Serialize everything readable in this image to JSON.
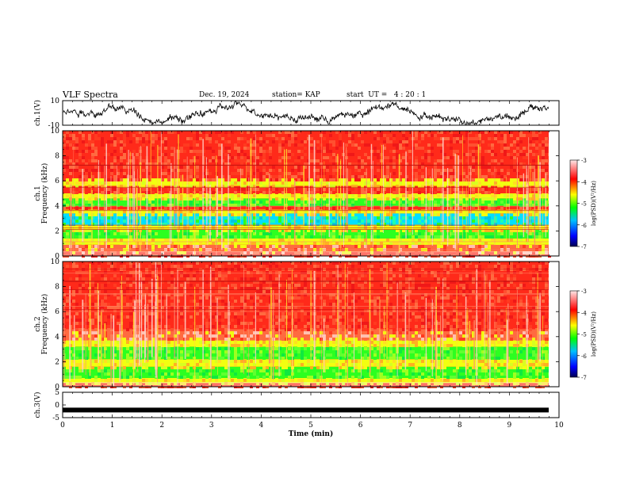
{
  "header": {
    "title": "VLF Spectra",
    "date": "Dec. 19, 2024",
    "station": "station= KAP",
    "start_ut": "start  UT =   4 : 20 : 1"
  },
  "colors": {
    "bg": "#ffffff",
    "axis": "#000000",
    "spec_red": "#ff2a1a",
    "spec_yellow": "#f2ff10",
    "spec_green": "#2cff20",
    "spec_cyan": "#00e0ff",
    "colorbar_stops": [
      "#000050",
      "#0000ff",
      "#00c0ff",
      "#00ff00",
      "#ffff00",
      "#ff0000",
      "#ffe8e8"
    ]
  },
  "chart_data": [
    {
      "type": "line",
      "name": "ch1-waveform",
      "ylabel": "ch.1(V)",
      "ylim": [
        -10,
        10
      ],
      "yticks": [
        "10",
        "-10"
      ],
      "xlim": [
        0,
        10
      ],
      "description_level": "noisy waveform oscillating roughly between -7 and +7 V"
    },
    {
      "type": "heatmap",
      "name": "ch1-spectrogram",
      "ylabel_line1": "ch.1",
      "ylabel_line2": "Frequency  (kHz)",
      "ylim": [
        0,
        10
      ],
      "yticks": [
        "0",
        "2",
        "4",
        "6",
        "8",
        "10"
      ],
      "xlim": [
        0,
        9.8
      ],
      "bands": [
        {
          "from": 0.0,
          "to": 0.3,
          "level": "red"
        },
        {
          "from": 0.3,
          "to": 0.9,
          "level": "mixed"
        },
        {
          "from": 0.9,
          "to": 1.4,
          "level": "yellow"
        },
        {
          "from": 1.4,
          "to": 2.1,
          "level": "green"
        },
        {
          "from": 2.1,
          "to": 2.5,
          "level": "yellow"
        },
        {
          "from": 2.5,
          "to": 3.4,
          "level": "cyan"
        },
        {
          "from": 3.4,
          "to": 3.7,
          "level": "yellow"
        },
        {
          "from": 3.7,
          "to": 4.0,
          "level": "red"
        },
        {
          "from": 4.0,
          "to": 4.6,
          "level": "green"
        },
        {
          "from": 4.6,
          "to": 5.0,
          "level": "yellow"
        },
        {
          "from": 5.0,
          "to": 5.6,
          "level": "red"
        },
        {
          "from": 5.6,
          "to": 6.2,
          "level": "yellow"
        },
        {
          "from": 6.2,
          "to": 10.0,
          "level": "red"
        }
      ],
      "colorbar": {
        "label": "log(PSD)(V²/Hz)",
        "ticks": [
          "-3",
          "-4",
          "-5",
          "-6",
          "-7"
        ],
        "range": [
          -7,
          -3
        ]
      }
    },
    {
      "type": "heatmap",
      "name": "ch2-spectrogram",
      "ylabel_line1": "ch.2",
      "ylabel_line2": "Frequency  (kHz)",
      "ylim": [
        0,
        10
      ],
      "yticks": [
        "0",
        "2",
        "4",
        "6",
        "8",
        "10"
      ],
      "xlim": [
        0,
        9.8
      ],
      "bands": [
        {
          "from": 0.0,
          "to": 0.3,
          "level": "red"
        },
        {
          "from": 0.3,
          "to": 0.7,
          "level": "yellow"
        },
        {
          "from": 0.7,
          "to": 1.6,
          "level": "green"
        },
        {
          "from": 1.6,
          "to": 2.2,
          "level": "yellow"
        },
        {
          "from": 2.2,
          "to": 3.2,
          "level": "green"
        },
        {
          "from": 3.2,
          "to": 3.7,
          "level": "yellow"
        },
        {
          "from": 3.7,
          "to": 4.6,
          "level": "mixed"
        },
        {
          "from": 4.6,
          "to": 10.0,
          "level": "red"
        }
      ],
      "colorbar": {
        "label": "log(PSD)(V²/Hz)",
        "ticks": [
          "-3",
          "-4",
          "-5",
          "-6",
          "-7"
        ],
        "range": [
          -7,
          -3
        ]
      }
    },
    {
      "type": "line",
      "name": "ch3-waveform",
      "ylabel": "ch.3(V)",
      "ylim": [
        -5,
        5
      ],
      "yticks": [
        "5",
        "0",
        "-5"
      ],
      "xlim": [
        0,
        10
      ],
      "description_level": "flat thick trace near -2 V"
    }
  ],
  "xaxis": {
    "label": "Time  (min)",
    "ticks": [
      "0",
      "1",
      "2",
      "3",
      "4",
      "5",
      "6",
      "7",
      "8",
      "9",
      "10"
    ]
  }
}
